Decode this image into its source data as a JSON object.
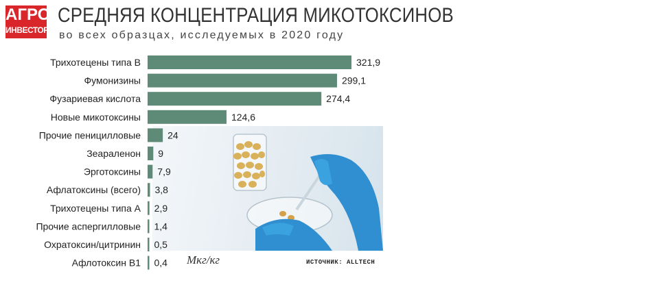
{
  "logo": {
    "line1": "АГРО",
    "line2": "ИНВЕСТОР",
    "color": "#d9262b"
  },
  "header": {
    "title": "СРЕДНЯЯ КОНЦЕНТРАЦИЯ МИКОТОКСИНОВ",
    "subtitle": "во всех образцах, исследуемых в 2020 году"
  },
  "footer": {
    "unit": "Мкг/кг",
    "source": "ИСТОЧНИК: ALLTECH"
  },
  "photo": {
    "subject": "gloved-hands-with-corn-kernels-and-petri-dish"
  },
  "colors": {
    "bar": "#5e8a78",
    "text": "#222222"
  },
  "chart_data": {
    "type": "bar",
    "orientation": "horizontal",
    "categories": [
      "Трихотецены типа В",
      "Фумонизины",
      "Фузариевая кислота",
      "Новые микотоксины",
      "Прочие пенициллoвые",
      "Зеараленон",
      "Эрготоксины",
      "Афлатоксины (всего)",
      "Трихотецены типа А",
      "Прочие аспергилловые",
      "Охратоксин/цитринин",
      "Афлотоксин В1"
    ],
    "values": [
      321.9,
      299.1,
      274.4,
      124.6,
      24,
      9,
      7.9,
      3.8,
      2.9,
      1.4,
      0.5,
      0.4
    ],
    "value_labels": [
      "321,9",
      "299,1",
      "274,4",
      "124,6",
      "24",
      "9",
      "7,9",
      "3,8",
      "2,9",
      "1,4",
      "0,5",
      "0,4"
    ],
    "xlim": [
      0,
      321.9
    ],
    "grid": false
  }
}
